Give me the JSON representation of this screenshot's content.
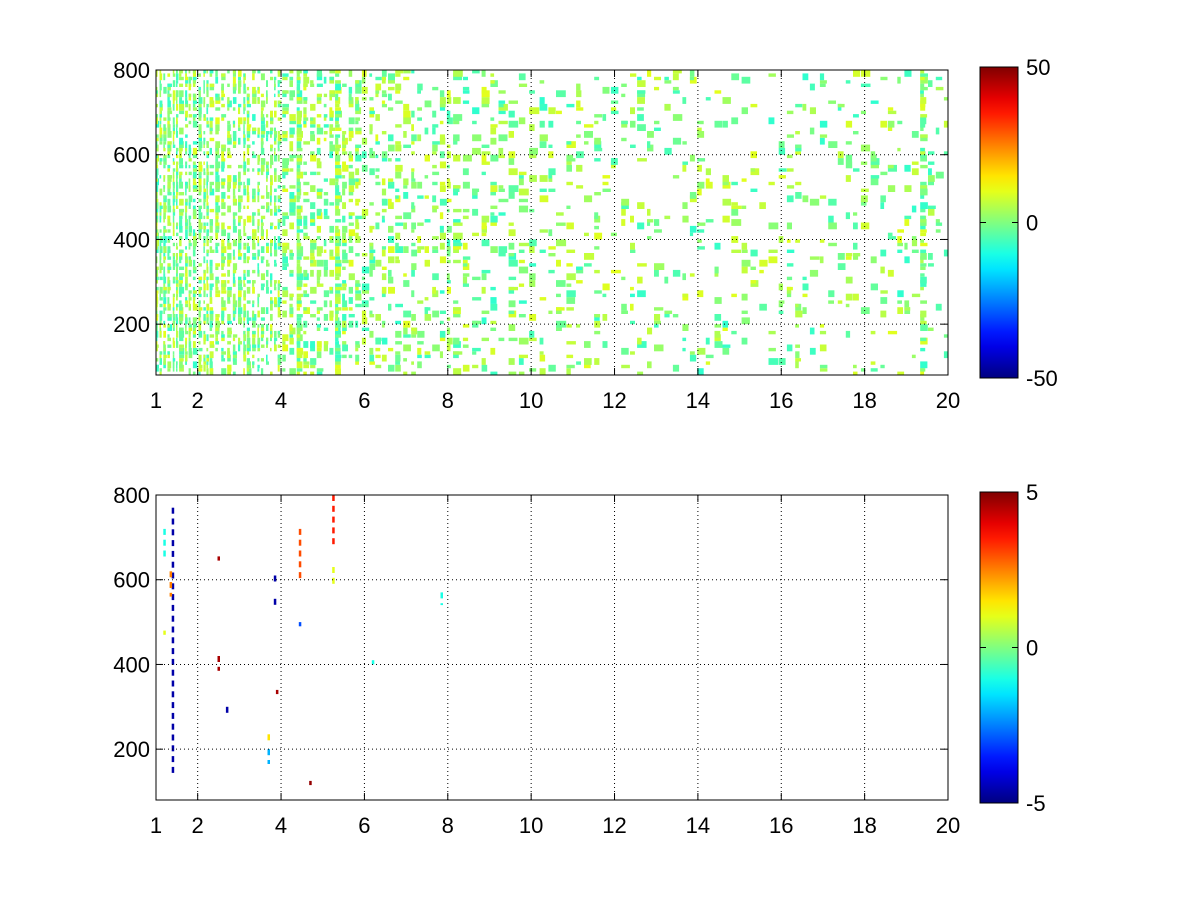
{
  "chart_data": [
    {
      "type": "heatmap",
      "colormap": "jet",
      "xlim": [
        1,
        20
      ],
      "ylim": [
        80,
        800
      ],
      "x_ticks": [
        "1",
        "2",
        "4",
        "6",
        "8",
        "10",
        "12",
        "14",
        "16",
        "18",
        "20"
      ],
      "y_ticks": [
        "200",
        "400",
        "600",
        "800"
      ],
      "grid": true,
      "colorbar": {
        "min": -50,
        "max": 50,
        "ticks": [
          "-50",
          "0",
          "50"
        ]
      },
      "x_tick_values": [
        1,
        2,
        4,
        6,
        8,
        10,
        12,
        14,
        16,
        18,
        20
      ],
      "y_tick_values": [
        200,
        400,
        600,
        800
      ],
      "colorbar_tick_values": [
        -50,
        0,
        50
      ],
      "pattern": {
        "seed": 7,
        "value_range": [
          -8,
          10
        ],
        "density": [
          [
            1,
            0.65
          ],
          [
            2,
            0.6
          ],
          [
            3,
            0.55
          ],
          [
            4,
            0.42
          ],
          [
            5,
            0.35
          ],
          [
            6,
            0.32
          ],
          [
            7,
            0.28
          ],
          [
            8,
            0.25
          ],
          [
            9,
            0.22
          ],
          [
            10,
            0.18
          ],
          [
            12,
            0.15
          ],
          [
            14,
            0.13
          ],
          [
            16,
            0.13
          ],
          [
            18,
            0.13
          ],
          [
            20,
            0.12
          ]
        ],
        "dense_columns": [
          4.4,
          5.25,
          19.3
        ]
      }
    },
    {
      "type": "heatmap",
      "colormap": "jet",
      "xlim": [
        1,
        20
      ],
      "ylim": [
        80,
        800
      ],
      "x_ticks": [
        "1",
        "2",
        "4",
        "6",
        "8",
        "10",
        "12",
        "14",
        "16",
        "18",
        "20"
      ],
      "y_ticks": [
        "200",
        "400",
        "600",
        "800"
      ],
      "grid": true,
      "colorbar": {
        "min": -5,
        "max": 5,
        "ticks": [
          "-5",
          "0",
          "5"
        ]
      },
      "x_tick_values": [
        1,
        2,
        4,
        6,
        8,
        10,
        12,
        14,
        16,
        18,
        20
      ],
      "y_tick_values": [
        200,
        400,
        600,
        800
      ],
      "colorbar_tick_values": [
        -5,
        0,
        5
      ],
      "sparse_marks": [
        {
          "x": 1.4,
          "y": [
            140,
            770
          ],
          "value": -4.6
        },
        {
          "x": 1.35,
          "y": [
            560,
            620
          ],
          "value": 2.5
        },
        {
          "x": 1.2,
          "y": [
            650,
            720
          ],
          "value": -1.0
        },
        {
          "x": 1.2,
          "y": [
            470,
            480
          ],
          "value": 1.0
        },
        {
          "x": 2.5,
          "y": [
            385,
            420
          ],
          "value": 4.6
        },
        {
          "x": 2.5,
          "y": [
            645,
            655
          ],
          "value": 4.6
        },
        {
          "x": 2.7,
          "y": [
            285,
            300
          ],
          "value": -4.6
        },
        {
          "x": 3.7,
          "y": [
            210,
            235
          ],
          "value": 1.5
        },
        {
          "x": 3.7,
          "y": [
            165,
            200
          ],
          "value": -2.0
        },
        {
          "x": 3.9,
          "y": [
            330,
            340
          ],
          "value": 4.6
        },
        {
          "x": 3.85,
          "y": [
            540,
            555
          ],
          "value": -4.6
        },
        {
          "x": 3.85,
          "y": [
            595,
            610
          ],
          "value": -4.6
        },
        {
          "x": 4.45,
          "y": [
            600,
            720
          ],
          "value": 3.0
        },
        {
          "x": 4.45,
          "y": [
            490,
            500
          ],
          "value": -3.0
        },
        {
          "x": 4.7,
          "y": [
            115,
            125
          ],
          "value": 4.8
        },
        {
          "x": 5.25,
          "y": [
            680,
            800
          ],
          "value": 3.5
        },
        {
          "x": 5.25,
          "y": [
            585,
            630
          ],
          "value": 1.0
        },
        {
          "x": 7.85,
          "y": [
            540,
            570
          ],
          "value": -1.0
        },
        {
          "x": 6.2,
          "y": [
            400,
            410
          ],
          "value": -1.0
        }
      ]
    }
  ]
}
